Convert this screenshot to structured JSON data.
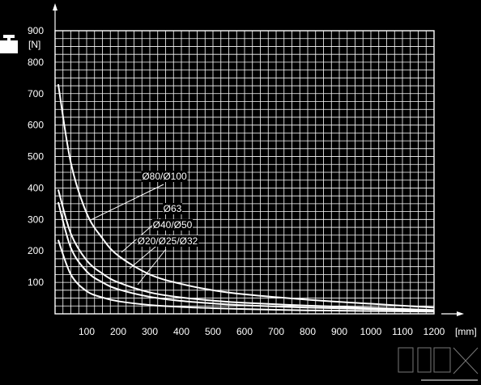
{
  "chart_data": {
    "type": "line",
    "title": "",
    "xlabel": "[mm]",
    "ylabel": "[N]",
    "xlim": [
      0,
      1200
    ],
    "ylim": [
      0,
      900
    ],
    "x_ticks": [
      100,
      200,
      300,
      400,
      500,
      600,
      700,
      800,
      900,
      1000,
      1100,
      1200
    ],
    "y_ticks": [
      100,
      200,
      300,
      400,
      500,
      600,
      700,
      800,
      900
    ],
    "grid": true,
    "line_color": "#ffffff",
    "background": "#000000",
    "series": [
      {
        "name": "Ø80/Ø100",
        "x": [
          10,
          50,
          100,
          150,
          200,
          300,
          400,
          500,
          600,
          800,
          1000,
          1200
        ],
        "y": [
          730,
          480,
          320,
          240,
          185,
          125,
          95,
          75,
          62,
          45,
          32,
          20
        ]
      },
      {
        "name": "Ø63",
        "x": [
          10,
          50,
          100,
          150,
          200,
          300,
          400,
          500,
          600,
          800,
          1000,
          1200
        ],
        "y": [
          395,
          255,
          170,
          128,
          100,
          68,
          52,
          42,
          35,
          26,
          19,
          12
        ]
      },
      {
        "name": "Ø40/Ø50",
        "x": [
          10,
          50,
          100,
          150,
          200,
          300,
          400,
          500,
          600,
          800,
          1000,
          1200
        ],
        "y": [
          355,
          210,
          135,
          100,
          78,
          54,
          41,
          33,
          27,
          20,
          15,
          10
        ]
      },
      {
        "name": "Ø20/Ø25/Ø32",
        "x": [
          10,
          50,
          100,
          150,
          200,
          300,
          400,
          500,
          600,
          800,
          1000,
          1200
        ],
        "y": [
          235,
          125,
          72,
          52,
          40,
          28,
          22,
          18,
          15,
          11,
          9,
          7
        ]
      }
    ]
  }
}
